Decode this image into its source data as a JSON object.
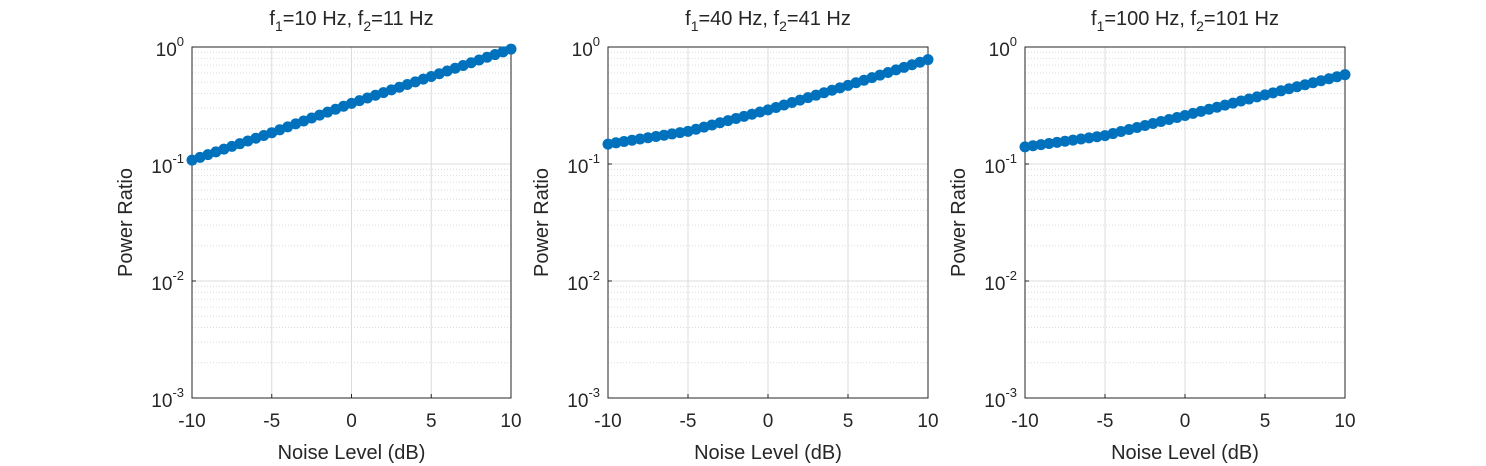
{
  "figure": {
    "background": "#ffffff",
    "marker_color": "#0072bd",
    "grid_color": "#dcdcdc",
    "axis_color": "#262626"
  },
  "chart_data": [
    {
      "type": "scatter",
      "title": {
        "f1_label": "f",
        "f1_sub": "1",
        "f1_val": "=10 Hz, ",
        "f2_label": "f",
        "f2_sub": "2",
        "f2_val": "=11 Hz"
      },
      "xlabel": "Noise Level (dB)",
      "ylabel": "Power Ratio",
      "xlim": [
        -10,
        10
      ],
      "ylim": [
        0.001,
        1
      ],
      "yscale": "log",
      "grid": true,
      "minor_grid": true,
      "x_ticks": [
        "-10",
        "-5",
        "0",
        "5",
        "10"
      ],
      "y_ticks": [
        {
          "base": "10",
          "exp": "-3"
        },
        {
          "base": "10",
          "exp": "-2"
        },
        {
          "base": "10",
          "exp": "-1"
        },
        {
          "base": "10",
          "exp": "0"
        }
      ],
      "series": [
        {
          "x_start": -10,
          "x_end": 10,
          "x_step": 0.5,
          "y_points": [
            [
              -10,
              0.108
            ],
            [
              -5,
              0.185
            ],
            [
              0,
              0.33
            ],
            [
              5,
              0.56
            ],
            [
              10,
              0.96
            ]
          ]
        }
      ]
    },
    {
      "type": "scatter",
      "title": {
        "f1_label": "f",
        "f1_sub": "1",
        "f1_val": "=40 Hz, ",
        "f2_label": "f",
        "f2_sub": "2",
        "f2_val": "=41 Hz"
      },
      "xlabel": "Noise Level (dB)",
      "ylabel": "Power Ratio",
      "xlim": [
        -10,
        10
      ],
      "ylim": [
        0.001,
        1
      ],
      "yscale": "log",
      "grid": true,
      "minor_grid": true,
      "x_ticks": [
        "-10",
        "-5",
        "0",
        "5",
        "10"
      ],
      "y_ticks": [
        {
          "base": "10",
          "exp": "-3"
        },
        {
          "base": "10",
          "exp": "-2"
        },
        {
          "base": "10",
          "exp": "-1"
        },
        {
          "base": "10",
          "exp": "0"
        }
      ],
      "series": [
        {
          "x_start": -10,
          "x_end": 10,
          "x_step": 0.5,
          "y_points": [
            [
              -10,
              0.148
            ],
            [
              -5,
              0.19
            ],
            [
              0,
              0.29
            ],
            [
              5,
              0.47
            ],
            [
              10,
              0.78
            ]
          ]
        }
      ]
    },
    {
      "type": "scatter",
      "title": {
        "f1_label": "f",
        "f1_sub": "1",
        "f1_val": "=100 Hz, ",
        "f2_label": "f",
        "f2_sub": "2",
        "f2_val": "=101 Hz"
      },
      "xlabel": "Noise Level (dB)",
      "ylabel": "Power Ratio",
      "xlim": [
        -10,
        10
      ],
      "ylim": [
        0.001,
        1
      ],
      "yscale": "log",
      "grid": true,
      "minor_grid": true,
      "x_ticks": [
        "-10",
        "-5",
        "0",
        "5",
        "10"
      ],
      "y_ticks": [
        {
          "base": "10",
          "exp": "-3"
        },
        {
          "base": "10",
          "exp": "-2"
        },
        {
          "base": "10",
          "exp": "-1"
        },
        {
          "base": "10",
          "exp": "0"
        }
      ],
      "series": [
        {
          "x_start": -10,
          "x_end": 10,
          "x_step": 0.5,
          "y_points": [
            [
              -10,
              0.14
            ],
            [
              -5,
              0.175
            ],
            [
              0,
              0.26
            ],
            [
              5,
              0.39
            ],
            [
              10,
              0.58
            ]
          ]
        }
      ]
    }
  ]
}
